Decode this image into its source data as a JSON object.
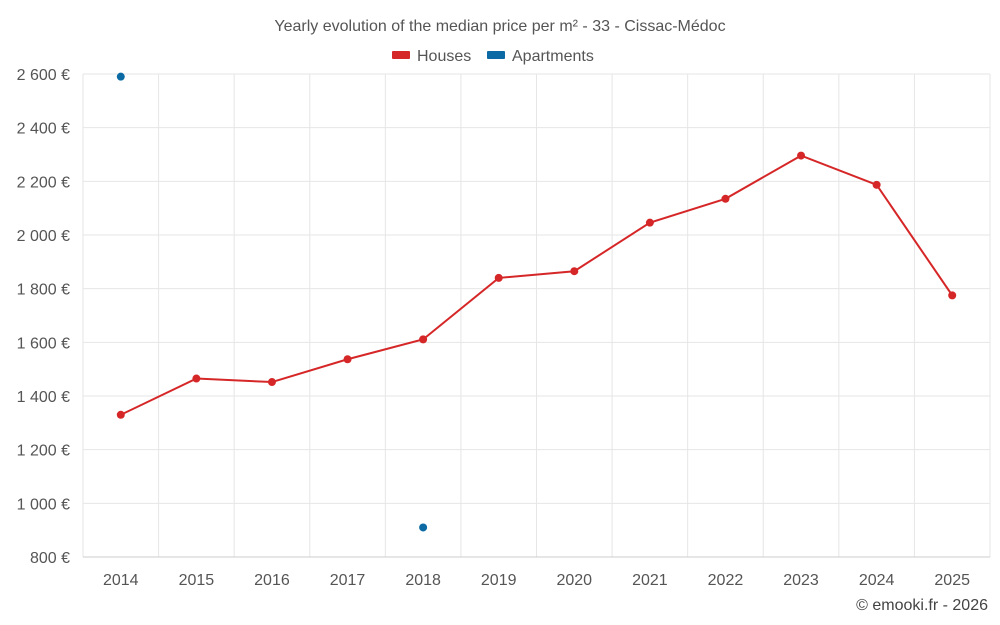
{
  "chart_data": {
    "type": "line",
    "title": "Yearly evolution of the median price per m² - 33 - Cissac-Médoc",
    "categories": [
      "2014",
      "2015",
      "2016",
      "2017",
      "2018",
      "2019",
      "2020",
      "2021",
      "2022",
      "2023",
      "2024",
      "2025"
    ],
    "series": [
      {
        "name": "Houses",
        "color": "#d62728",
        "values": [
          1330,
          1465,
          1452,
          1537,
          1611,
          1840,
          1865,
          2046,
          2135,
          2296,
          2187,
          1775
        ]
      },
      {
        "name": "Apartments",
        "color": "#0b6aa3",
        "values": [
          2590,
          null,
          null,
          null,
          910,
          null,
          null,
          null,
          null,
          null,
          null,
          null
        ]
      }
    ],
    "ylim": [
      800,
      2600
    ],
    "yticks": [
      800,
      1000,
      1200,
      1400,
      1600,
      1800,
      2000,
      2200,
      2400,
      2600
    ],
    "ytick_labels": [
      "800 €",
      "1 000 €",
      "1 200 €",
      "1 400 €",
      "1 600 €",
      "1 800 €",
      "2 000 €",
      "2 200 €",
      "2 400 €",
      "2 600 €"
    ],
    "xlabel": "",
    "ylabel": "",
    "grid": true,
    "legend_position": "top-center"
  },
  "credit": "© emooki.fr - 2026"
}
